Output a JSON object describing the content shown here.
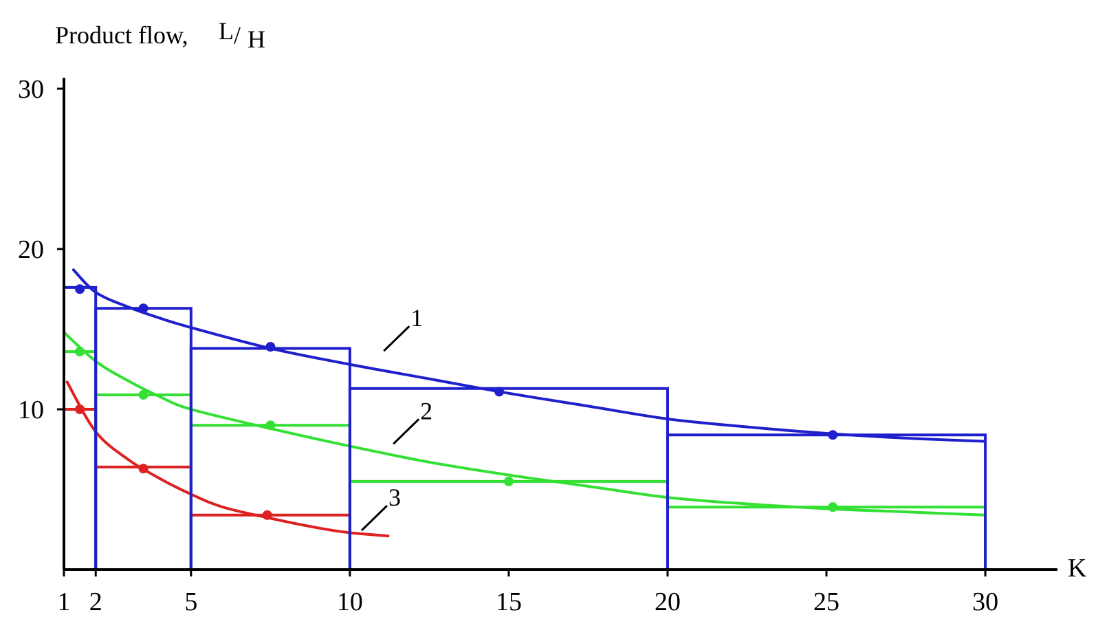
{
  "chart_data": {
    "type": "line",
    "title": "",
    "ylabel": "Product flow,",
    "ylabel_unit_num": "L",
    "ylabel_unit_sep": "/",
    "ylabel_unit_den": "H",
    "xlabel": "K",
    "ylim": [
      0,
      30
    ],
    "yticks": [
      "10",
      "20",
      "30"
    ],
    "xticks": [
      {
        "value": 1,
        "label": "1"
      },
      {
        "value": 2,
        "label": "2"
      },
      {
        "value": 5,
        "label": "5"
      },
      {
        "value": 10,
        "label": "10"
      },
      {
        "value": 15,
        "label": "15"
      },
      {
        "value": 20,
        "label": "20"
      },
      {
        "value": 25,
        "label": "25"
      },
      {
        "value": 30,
        "label": "30"
      }
    ],
    "series": [
      {
        "label": "1",
        "color": "#1f1fcc",
        "step_bins": [
          [
            1,
            2,
            17.6
          ],
          [
            2,
            5,
            16.3
          ],
          [
            5,
            10,
            13.8
          ],
          [
            10,
            20,
            11.3
          ],
          [
            20,
            30,
            8.4
          ]
        ],
        "points": [
          [
            1.5,
            17.5
          ],
          [
            3.5,
            16.3
          ],
          [
            7.5,
            13.9
          ],
          [
            14.7,
            11.1
          ],
          [
            25.2,
            8.4
          ]
        ],
        "curve": [
          [
            1.3,
            18.7
          ],
          [
            2,
            17.3
          ],
          [
            3,
            16.4
          ],
          [
            4,
            15.7
          ],
          [
            5,
            15.1
          ],
          [
            7.5,
            13.8
          ],
          [
            10,
            12.8
          ],
          [
            12.5,
            11.9
          ],
          [
            15,
            11.0
          ],
          [
            17.5,
            10.2
          ],
          [
            20,
            9.4
          ],
          [
            22.5,
            8.9
          ],
          [
            25,
            8.5
          ],
          [
            27.5,
            8.2
          ],
          [
            30,
            8.0
          ]
        ],
        "label_pos": [
          12.0,
          14.5
        ]
      },
      {
        "label": "2",
        "color": "#33e033",
        "step_bins": [
          [
            1,
            2,
            13.6
          ],
          [
            2,
            5,
            10.9
          ],
          [
            5,
            10,
            9.0
          ],
          [
            10,
            20,
            5.5
          ],
          [
            20,
            30,
            3.9
          ]
        ],
        "points": [
          [
            1.5,
            13.6
          ],
          [
            3.5,
            10.9
          ],
          [
            7.5,
            9.0
          ],
          [
            15,
            5.5
          ],
          [
            25.2,
            3.9
          ]
        ],
        "curve": [
          [
            1,
            14.8
          ],
          [
            2,
            13.0
          ],
          [
            3,
            11.8
          ],
          [
            4,
            10.8
          ],
          [
            5,
            10.0
          ],
          [
            7.5,
            8.8
          ],
          [
            10,
            7.7
          ],
          [
            12.5,
            6.7
          ],
          [
            15,
            5.9
          ],
          [
            17.5,
            5.2
          ],
          [
            20,
            4.5
          ],
          [
            22.5,
            4.1
          ],
          [
            25,
            3.8
          ],
          [
            27.5,
            3.6
          ],
          [
            30,
            3.4
          ]
        ],
        "label_pos": [
          12.3,
          8.7
        ]
      },
      {
        "label": "3",
        "color": "#dd2020",
        "step_bins": [
          [
            1,
            2,
            10.0
          ],
          [
            2,
            5,
            6.4
          ],
          [
            5,
            10,
            3.4
          ]
        ],
        "points": [
          [
            1.5,
            10.0
          ],
          [
            3.5,
            6.3
          ],
          [
            7.4,
            3.4
          ]
        ],
        "curve": [
          [
            1.1,
            11.7
          ],
          [
            2,
            8.6
          ],
          [
            3,
            6.9
          ],
          [
            4,
            5.7
          ],
          [
            5,
            4.7
          ],
          [
            6,
            3.9
          ],
          [
            7.5,
            3.2
          ],
          [
            9,
            2.6
          ],
          [
            10,
            2.3
          ],
          [
            11.2,
            2.1
          ]
        ],
        "label_pos": [
          11.3,
          3.3
        ]
      }
    ]
  }
}
